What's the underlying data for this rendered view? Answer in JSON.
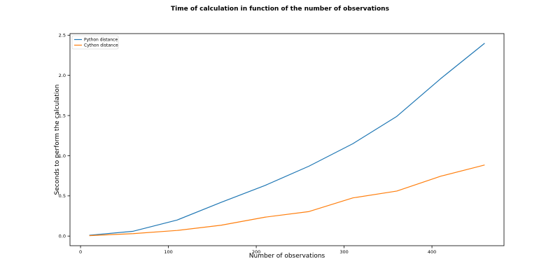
{
  "chart_data": {
    "type": "line",
    "title": "Time of calculation in function of the number of observations",
    "xlabel": "Number of observations",
    "ylabel": "Seconds to perform the calculation",
    "x": [
      10,
      60,
      110,
      160,
      210,
      260,
      310,
      360,
      410,
      460
    ],
    "series": [
      {
        "name": "Python distance",
        "color": "#1f77b4",
        "values": [
          0.01,
          0.06,
          0.2,
          0.42,
          0.63,
          0.87,
          1.15,
          1.49,
          1.96,
          2.4
        ]
      },
      {
        "name": "Cython distance",
        "color": "#ff7f0e",
        "values": [
          0.005,
          0.03,
          0.07,
          0.135,
          0.235,
          0.305,
          0.475,
          0.56,
          0.745,
          0.885
        ]
      }
    ],
    "xlim": [
      -12,
      482
    ],
    "ylim": [
      -0.12,
      2.52
    ],
    "xticks": [
      0,
      100,
      200,
      300,
      400
    ],
    "yticks": [
      0.0,
      0.5,
      1.0,
      1.5,
      2.0,
      2.5
    ],
    "xtick_labels": [
      "0",
      "100",
      "200",
      "300",
      "400"
    ],
    "ytick_labels": [
      "0.0",
      "0.5",
      "1.0",
      "1.5",
      "2.0",
      "2.5"
    ],
    "grid": false,
    "legend_position": "top-left"
  }
}
